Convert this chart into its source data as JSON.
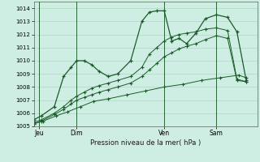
{
  "title": "Pression niveau de la mer( hPa )",
  "background_color": "#ceeee4",
  "grid_color": "#aacfbf",
  "line_color": "#1a5c28",
  "ylim": [
    1005,
    1014.5
  ],
  "yticks": [
    1005,
    1006,
    1007,
    1008,
    1009,
    1010,
    1011,
    1012,
    1013,
    1014
  ],
  "xlim": [
    0,
    12.0
  ],
  "day_labels": [
    "Jeu",
    "Dim",
    "Ven",
    "Sam"
  ],
  "day_positions": [
    0.3,
    2.3,
    7.0,
    9.8
  ],
  "vline_positions": [
    0.3,
    2.3,
    7.0,
    9.8
  ],
  "series1_x": [
    0.0,
    0.4,
    1.1,
    1.6,
    2.0,
    2.3,
    2.7,
    3.1,
    3.5,
    4.0,
    4.5,
    5.2,
    5.8,
    6.2,
    6.6,
    7.0,
    7.4,
    7.8,
    8.2,
    8.7,
    9.2,
    9.8,
    10.4,
    10.9,
    11.4
  ],
  "series1_y": [
    1005.5,
    1005.8,
    1006.5,
    1008.8,
    1009.5,
    1010.0,
    1010.0,
    1009.7,
    1009.2,
    1008.8,
    1009.0,
    1010.0,
    1013.0,
    1013.7,
    1013.8,
    1013.8,
    1011.5,
    1011.7,
    1011.3,
    1012.1,
    1013.2,
    1013.5,
    1013.3,
    1012.2,
    1008.5
  ],
  "series2_x": [
    0.0,
    0.4,
    1.1,
    1.6,
    2.0,
    2.3,
    2.7,
    3.1,
    3.5,
    4.0,
    4.5,
    5.2,
    5.8,
    6.2,
    6.6,
    7.0,
    7.4,
    7.8,
    8.2,
    8.7,
    9.2,
    9.8,
    10.4,
    10.9,
    11.4
  ],
  "series2_y": [
    1005.3,
    1005.5,
    1006.0,
    1006.5,
    1007.0,
    1007.3,
    1007.6,
    1007.9,
    1008.1,
    1008.3,
    1008.5,
    1008.8,
    1009.5,
    1010.5,
    1011.0,
    1011.5,
    1011.8,
    1012.0,
    1012.1,
    1012.2,
    1012.4,
    1012.5,
    1012.3,
    1008.6,
    1008.4
  ],
  "series3_x": [
    0.0,
    0.4,
    1.1,
    1.6,
    2.0,
    2.3,
    2.7,
    3.1,
    3.5,
    4.0,
    4.5,
    5.2,
    5.8,
    6.2,
    6.6,
    7.0,
    7.4,
    7.8,
    8.2,
    8.7,
    9.2,
    9.8,
    10.4,
    10.9,
    11.4
  ],
  "series3_y": [
    1005.2,
    1005.4,
    1005.9,
    1006.3,
    1006.7,
    1007.0,
    1007.2,
    1007.4,
    1007.6,
    1007.8,
    1008.0,
    1008.3,
    1008.8,
    1009.3,
    1009.8,
    1010.3,
    1010.6,
    1010.9,
    1011.1,
    1011.3,
    1011.6,
    1011.9,
    1011.7,
    1008.5,
    1008.4
  ],
  "series4_x": [
    0.0,
    0.5,
    1.2,
    1.8,
    2.5,
    3.2,
    4.0,
    5.0,
    6.0,
    7.0,
    8.0,
    9.0,
    10.0,
    11.0,
    11.4
  ],
  "series4_y": [
    1005.2,
    1005.4,
    1005.8,
    1006.1,
    1006.5,
    1006.9,
    1007.1,
    1007.4,
    1007.7,
    1008.0,
    1008.2,
    1008.5,
    1008.7,
    1008.9,
    1008.7
  ]
}
